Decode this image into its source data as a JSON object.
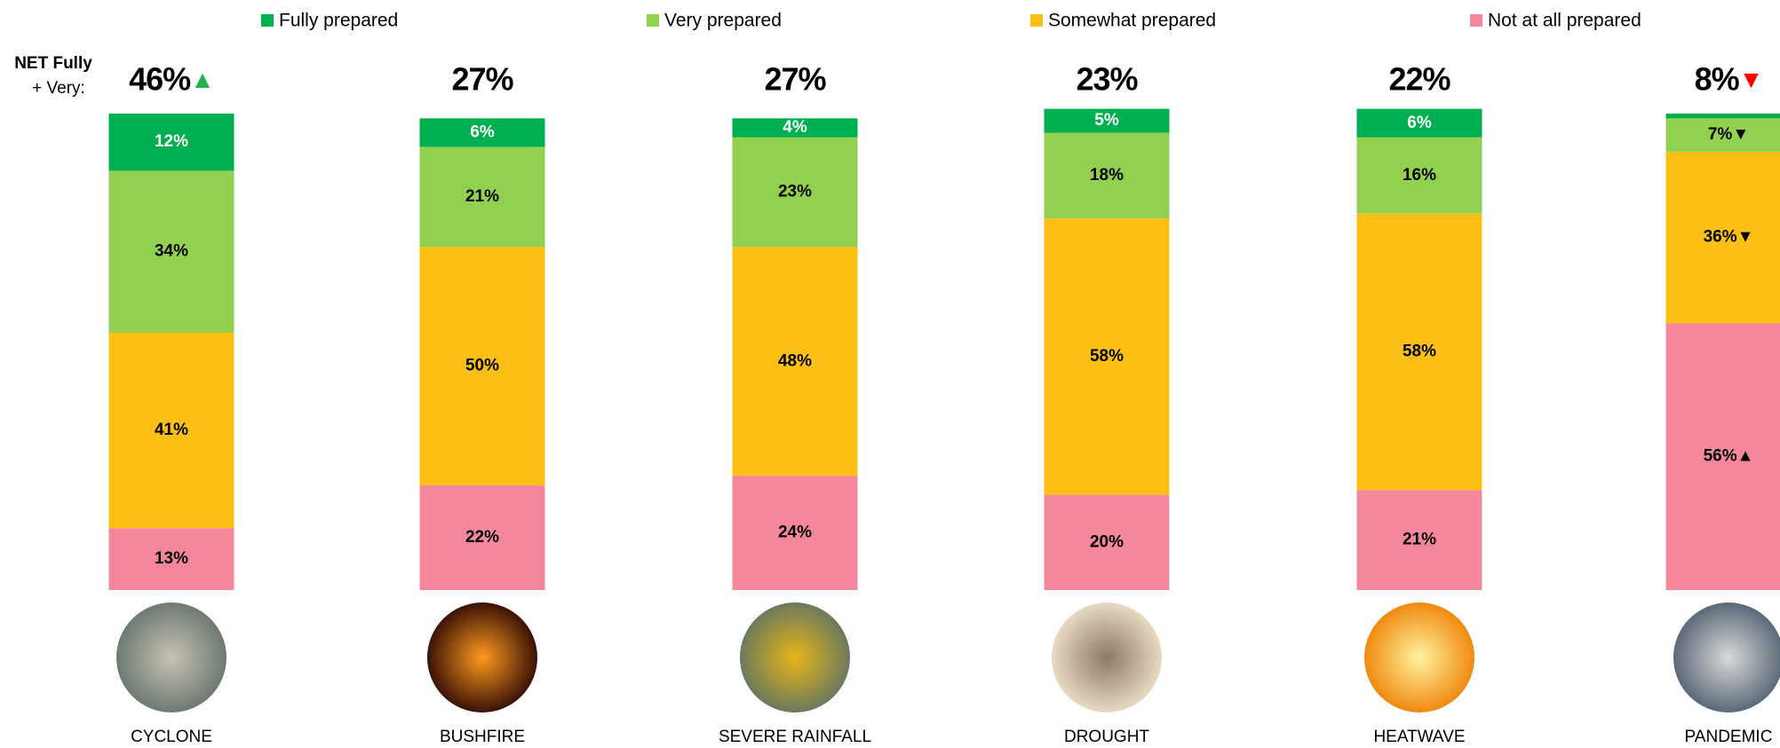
{
  "chart_data": {
    "type": "stacked_bar",
    "categories": [
      "CYCLONE",
      "BUSHFIRE",
      "SEVERE RAINFALL",
      "DROUGHT",
      "HEATWAVE",
      "PANDEMIC"
    ],
    "series": [
      {
        "name": "Fully prepared",
        "color": "#00b050",
        "label_color": "#ffffff",
        "values": [
          12,
          6,
          4,
          5,
          6,
          1
        ],
        "value_labels": [
          "12%",
          "6%",
          "4%",
          "5%",
          "6%",
          null
        ]
      },
      {
        "name": "Very prepared",
        "color": "#92d050",
        "label_color": "#000000",
        "values": [
          34,
          21,
          23,
          18,
          16,
          7
        ],
        "value_labels": [
          "34%",
          "21%",
          "23%",
          "18%",
          "16%",
          "7%▼"
        ]
      },
      {
        "name": "Somewhat prepared",
        "color": "#fcbf16",
        "label_color": "#000000",
        "values": [
          41,
          50,
          48,
          58,
          58,
          36
        ],
        "value_labels": [
          "41%",
          "50%",
          "48%",
          "58%",
          "58%",
          "36%▼"
        ]
      },
      {
        "name": "Not at all prepared",
        "color": "#f4879c",
        "label_color": "#000000",
        "values": [
          13,
          22,
          24,
          20,
          21,
          56
        ],
        "value_labels": [
          "13%",
          "22%",
          "24%",
          "20%",
          "21%",
          "56%▲"
        ]
      }
    ],
    "ylim": [
      0,
      100
    ],
    "net": {
      "title": [
        "NET Fully",
        "+ Very:"
      ],
      "labels": [
        "46%▲",
        "27%",
        "27%",
        "23%",
        "22%",
        "8%▼"
      ],
      "up_color": "#22b14c",
      "down_color": "#ff0000"
    }
  }
}
